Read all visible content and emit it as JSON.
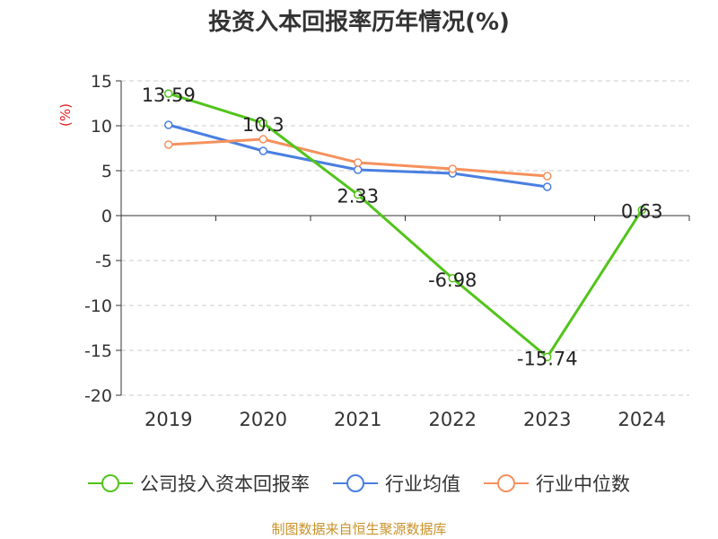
{
  "chart_data": {
    "type": "line",
    "title": "投资入本回报率历年情况(%)",
    "ylabel": "(%)",
    "ylim": [
      -20,
      15
    ],
    "yticks": [
      15,
      10,
      5,
      0,
      -5,
      -10,
      -15,
      -20
    ],
    "categories": [
      "2019",
      "2020",
      "2021",
      "2022",
      "2023",
      "2024"
    ],
    "grid": true,
    "legend_position": "bottom",
    "series": [
      {
        "name": "公司投入资本回报率",
        "color": "#52c41a",
        "values": [
          13.59,
          10.3,
          2.33,
          -6.98,
          -15.74,
          0.63
        ],
        "labels": [
          "13.59",
          "10.3",
          "2.33",
          "-6.98",
          "-15.74",
          "0.63"
        ]
      },
      {
        "name": "行业均值",
        "color": "#4a7fe0",
        "values": [
          10.1,
          7.2,
          5.1,
          4.7,
          3.2,
          null
        ]
      },
      {
        "name": "行业中位数",
        "color": "#f5915d",
        "values": [
          7.9,
          8.5,
          5.9,
          5.2,
          4.4,
          null
        ]
      }
    ],
    "source": "制图数据来自恒生聚源数据库"
  }
}
